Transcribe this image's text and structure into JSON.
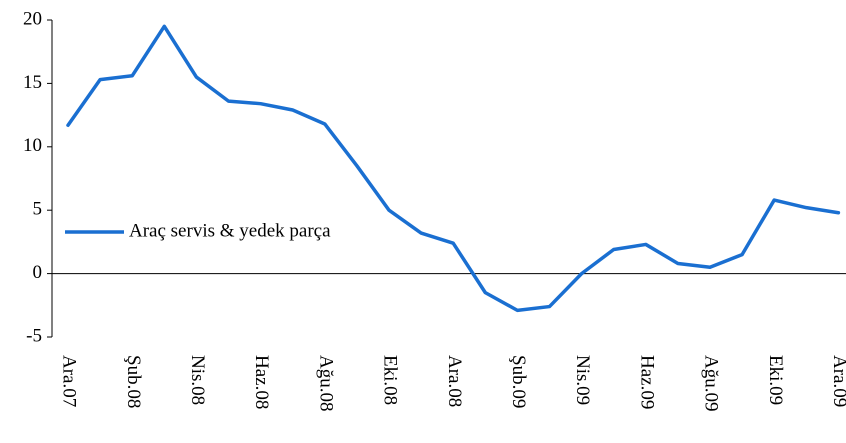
{
  "chart_data": {
    "type": "line",
    "categories": [
      "Ara.07",
      null,
      "Şub.08",
      null,
      "Nis.08",
      null,
      "Haz.08",
      null,
      "Ağu.08",
      null,
      "Eki.08",
      null,
      "Ara.08",
      null,
      "Şub.09",
      null,
      "Nis.09",
      null,
      "Haz.09",
      null,
      "Ağu.09",
      null,
      "Eki.09",
      null,
      "Ara.09"
    ],
    "series": [
      {
        "name": "Araç servis & yedek parça",
        "color": "#1a6fd1",
        "values": [
          11.7,
          15.3,
          15.6,
          19.5,
          15.5,
          13.6,
          13.4,
          12.9,
          11.8,
          8.5,
          5.0,
          3.2,
          2.4,
          -1.5,
          -2.9,
          -2.6,
          0.0,
          1.9,
          2.3,
          0.8,
          0.5,
          1.5,
          5.8,
          5.2,
          4.8
        ]
      }
    ],
    "ylim": [
      -5,
      20
    ],
    "yticks": [
      -5,
      0,
      5,
      10,
      15,
      20
    ],
    "legend": "center left"
  }
}
